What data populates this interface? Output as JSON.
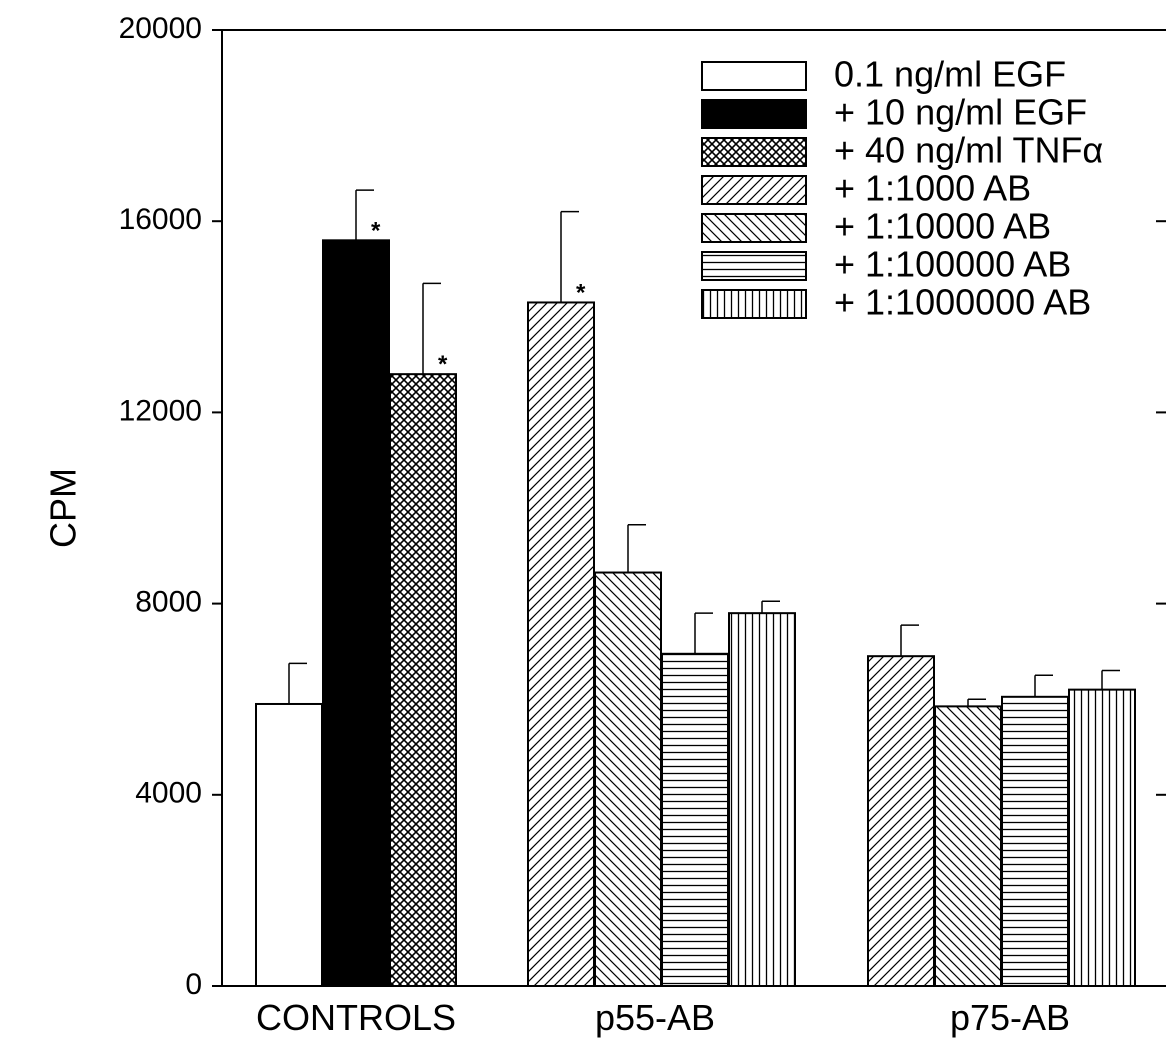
{
  "chart_data": {
    "type": "bar",
    "ylabel": "CPM",
    "xlabel": "",
    "ylim": [
      0,
      20000
    ],
    "yticks": [
      "0",
      "4000",
      "8000",
      "12000",
      "16000",
      "20000"
    ],
    "grid": false,
    "legend_position": "top-right",
    "groups": [
      {
        "label": "CONTROLS",
        "bars": [
          {
            "series": "0.1 ng/ml EGF",
            "value": 5900,
            "error": 850,
            "star": false
          },
          {
            "series": "+ 10 ng/ml EGF",
            "value": 15600,
            "error": 1050,
            "star": true
          },
          {
            "series": "+ 40 ng/ml TNFα",
            "value": 12800,
            "error": 1900,
            "star": true
          }
        ]
      },
      {
        "label": "p55-AB",
        "bars": [
          {
            "series": "+ 1:1000 AB",
            "value": 14300,
            "error": 1900,
            "star": true
          },
          {
            "series": "+ 1:10000 AB",
            "value": 8650,
            "error": 1000,
            "star": false
          },
          {
            "series": "+ 1:100000 AB",
            "value": 6950,
            "error": 850,
            "star": false
          },
          {
            "series": "+ 1:1000000 AB",
            "value": 7800,
            "error": 250,
            "star": false
          }
        ]
      },
      {
        "label": "p75-AB",
        "bars": [
          {
            "series": "+ 1:1000 AB",
            "value": 6900,
            "error": 650,
            "star": false
          },
          {
            "series": "+ 1:10000 AB",
            "value": 5850,
            "error": 150,
            "star": false
          },
          {
            "series": "+ 1:100000 AB",
            "value": 6050,
            "error": 450,
            "star": false
          },
          {
            "series": "+ 1:1000000 AB",
            "value": 6200,
            "error": 400,
            "star": false
          }
        ]
      }
    ],
    "legend": [
      {
        "name": "0.1 ng/ml EGF",
        "pattern": "open"
      },
      {
        "name": "+ 10 ng/ml EGF",
        "pattern": "solid"
      },
      {
        "name": "+ 40 ng/ml TNFα",
        "pattern": "crosshatch"
      },
      {
        "name": "+ 1:1000 AB",
        "pattern": "diag-up"
      },
      {
        "name": "+ 1:10000 AB",
        "pattern": "diag-down"
      },
      {
        "name": "+ 1:100000 AB",
        "pattern": "horizontal"
      },
      {
        "name": "+ 1:1000000 AB",
        "pattern": "vertical"
      }
    ],
    "star_symbol": "*"
  },
  "colors": {
    "ink": "#000000",
    "background": "#ffffff"
  }
}
